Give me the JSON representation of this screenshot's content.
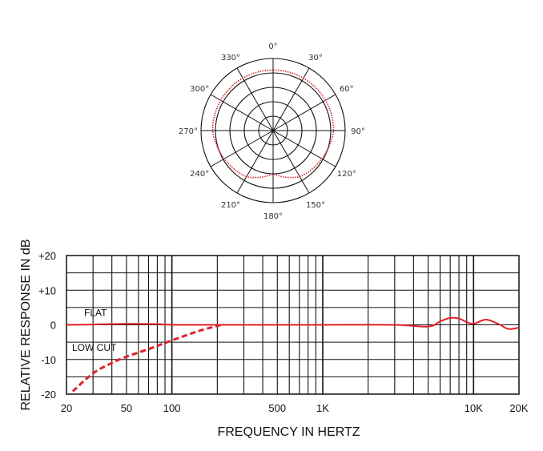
{
  "chart_data": [
    {
      "type": "polar",
      "angle_labels": [
        "0°",
        "30°",
        "60°",
        "90°",
        "120°",
        "150°",
        "180°",
        "210°",
        "240°",
        "270°",
        "300°",
        "330°"
      ],
      "rings": 5,
      "series": [
        {
          "color": "#e0202a",
          "style": "dotted",
          "description_values_radius_fraction": [
            {
              "angle": 0,
              "r": 0.84
            },
            {
              "angle": 30,
              "r": 0.84
            },
            {
              "angle": 60,
              "r": 0.84
            },
            {
              "angle": 90,
              "r": 0.84
            },
            {
              "angle": 120,
              "r": 0.78
            },
            {
              "angle": 150,
              "r": 0.74
            },
            {
              "angle": 180,
              "r": 0.6
            },
            {
              "angle": 210,
              "r": 0.74
            },
            {
              "angle": 240,
              "r": 0.78
            },
            {
              "angle": 270,
              "r": 0.84
            },
            {
              "angle": 300,
              "r": 0.84
            },
            {
              "angle": 330,
              "r": 0.84
            }
          ]
        }
      ]
    },
    {
      "type": "line",
      "xscale": "log",
      "xlim": [
        20,
        20000
      ],
      "ylim": [
        -20,
        20
      ],
      "xlabel": "FREQUENCY IN HERTZ",
      "ylabel": "RELATIVE RESPONSE IN dB",
      "x_tick_labels": [
        {
          "value": 20,
          "label": "20"
        },
        {
          "value": 50,
          "label": "50"
        },
        {
          "value": 100,
          "label": "100"
        },
        {
          "value": 500,
          "label": "500"
        },
        {
          "value": 1000,
          "label": "1K"
        },
        {
          "value": 10000,
          "label": "10K"
        },
        {
          "value": 20000,
          "label": "20K"
        }
      ],
      "y_tick_labels": [
        {
          "value": 20,
          "label": "+20"
        },
        {
          "value": 10,
          "label": "+10"
        },
        {
          "value": 0,
          "label": "0"
        },
        {
          "value": -10,
          "label": "-10"
        },
        {
          "value": -20,
          "label": "-20"
        }
      ],
      "grid": true,
      "series": [
        {
          "name": "FLAT",
          "color": "#e0202a",
          "style": "solid",
          "points": [
            [
              20,
              0
            ],
            [
              30,
              0.1
            ],
            [
              50,
              0.3
            ],
            [
              80,
              0.2
            ],
            [
              100,
              0
            ],
            [
              200,
              0
            ],
            [
              500,
              0
            ],
            [
              1000,
              0
            ],
            [
              3000,
              0
            ],
            [
              5000,
              -0.5
            ],
            [
              6000,
              1
            ],
            [
              7000,
              2
            ],
            [
              8000,
              1.8
            ],
            [
              9000,
              0.8
            ],
            [
              10000,
              0.3
            ],
            [
              11000,
              1
            ],
            [
              12000,
              1.5
            ],
            [
              13000,
              1.2
            ],
            [
              15000,
              0
            ],
            [
              17000,
              -1.2
            ],
            [
              20000,
              -0.8
            ]
          ]
        },
        {
          "name": "LOW CUT",
          "color": "#e0202a",
          "style": "dashed",
          "points": [
            [
              22,
              -19.2
            ],
            [
              30,
              -14
            ],
            [
              40,
              -11
            ],
            [
              50,
              -9.2
            ],
            [
              70,
              -7
            ],
            [
              100,
              -4.5
            ],
            [
              150,
              -1.8
            ],
            [
              200,
              -0.3
            ],
            [
              210,
              0
            ]
          ]
        }
      ]
    }
  ]
}
